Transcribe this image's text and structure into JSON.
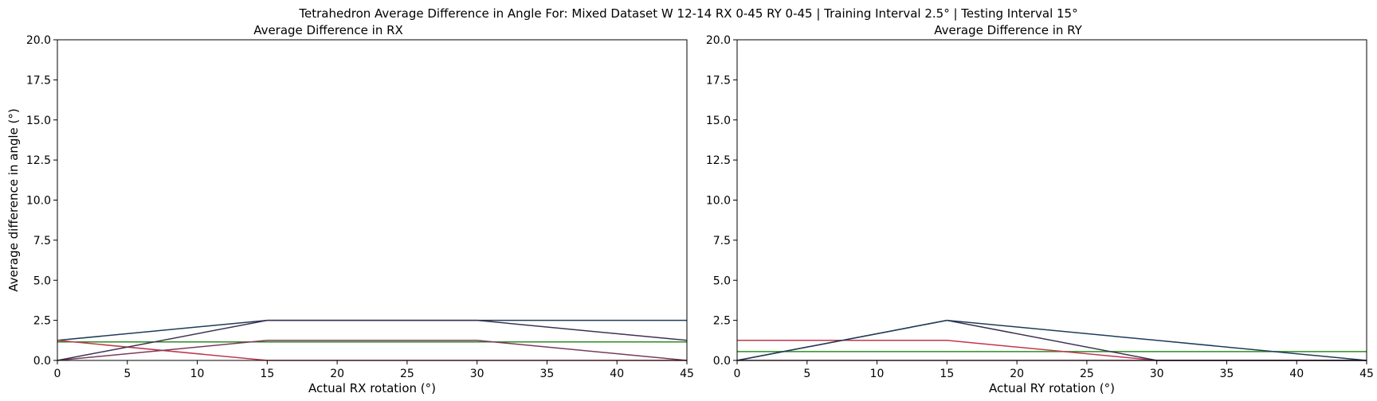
{
  "suptitle": "Tetrahedron Average Difference in Angle For: Mixed Dataset W 12-14 RX 0-45 RY 0-45 | Training Interval 2.5° | Testing Interval 15°",
  "chart_data": [
    {
      "type": "line",
      "title": "Average Difference in RX",
      "xlabel": "Actual RX rotation (°)",
      "ylabel": "Average difference in angle (°)",
      "xlim": [
        0,
        45
      ],
      "ylim": [
        0,
        20
      ],
      "xticks": [
        "0",
        "5",
        "10",
        "15",
        "20",
        "25",
        "30",
        "35",
        "40",
        "45"
      ],
      "yticks": [
        "0.0",
        "2.5",
        "5.0",
        "7.5",
        "10.0",
        "12.5",
        "15.0",
        "17.5",
        "20.0"
      ],
      "x": [
        0,
        15,
        30,
        45
      ],
      "series": [
        {
          "color": "#1f3b57",
          "values": [
            1.25,
            2.5,
            2.5,
            2.5
          ]
        },
        {
          "color": "#2e8b22",
          "values": [
            1.15,
            1.15,
            1.15,
            1.15
          ]
        },
        {
          "color": "#c0384f",
          "values": [
            1.25,
            0,
            0,
            0
          ]
        },
        {
          "color": "#7a3a5a",
          "values": [
            0,
            1.25,
            1.25,
            0
          ]
        },
        {
          "color": "#3b3352",
          "values": [
            0,
            2.5,
            2.5,
            1.25
          ]
        }
      ]
    },
    {
      "type": "line",
      "title": "Average Difference in RY",
      "xlabel": "Actual RY rotation (°)",
      "ylabel": "",
      "xlim": [
        0,
        45
      ],
      "ylim": [
        0,
        20
      ],
      "xticks": [
        "0",
        "5",
        "10",
        "15",
        "20",
        "25",
        "30",
        "35",
        "40",
        "45"
      ],
      "yticks": [
        "0.0",
        "2.5",
        "5.0",
        "7.5",
        "10.0",
        "12.5",
        "15.0",
        "17.5",
        "20.0"
      ],
      "x": [
        0,
        15,
        30,
        45
      ],
      "series": [
        {
          "color": "#2e8b22",
          "values": [
            0.55,
            0.55,
            0.55,
            0.55
          ]
        },
        {
          "color": "#c0384f",
          "values": [
            1.25,
            1.25,
            0,
            0
          ]
        },
        {
          "color": "#7a3a5a",
          "values": [
            0,
            0,
            0,
            0
          ]
        },
        {
          "color": "#3b3352",
          "values": [
            0,
            2.5,
            0,
            0
          ]
        },
        {
          "color": "#1f3b57",
          "values": [
            0,
            2.5,
            1.25,
            0
          ]
        }
      ]
    }
  ]
}
